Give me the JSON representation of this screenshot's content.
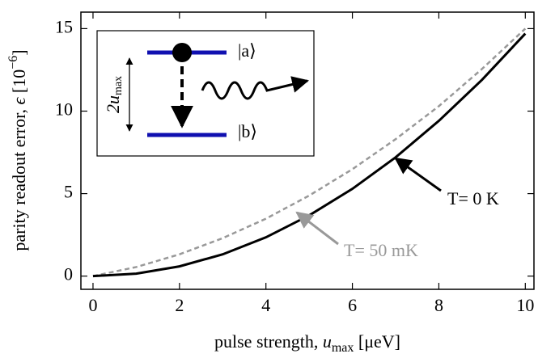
{
  "chart_data": {
    "type": "line",
    "xlabel": [
      "pulse strength, ",
      "u",
      "max",
      " [μeV]"
    ],
    "ylabel": [
      "parity readout error, ",
      "ϵ",
      " [10",
      "−6",
      "]"
    ],
    "x": [
      0,
      1,
      2,
      3,
      4,
      5,
      6,
      7,
      8,
      9,
      10
    ],
    "series": [
      {
        "name": "T= 0 K",
        "color": "#000000",
        "dashed": false,
        "values": [
          0,
          0.15,
          0.59,
          1.32,
          2.35,
          3.68,
          5.29,
          7.2,
          9.41,
          11.9,
          14.7
        ]
      },
      {
        "name": "T= 50 mK",
        "color": "#999999",
        "dashed": true,
        "values": [
          0,
          0.55,
          1.32,
          2.3,
          3.48,
          4.88,
          6.48,
          8.3,
          10.3,
          12.56,
          15.0
        ]
      }
    ],
    "xlim": [
      -0.28,
      10.2
    ],
    "ylim": [
      -0.8,
      16
    ],
    "xticks": [
      0,
      2,
      4,
      6,
      8,
      10
    ],
    "yticks": [
      0,
      5,
      10,
      15
    ],
    "inset": {
      "upper_state": "|a⟩",
      "lower_state": "|b⟩",
      "gap_label": "2u",
      "gap_label_sub": "max"
    }
  }
}
